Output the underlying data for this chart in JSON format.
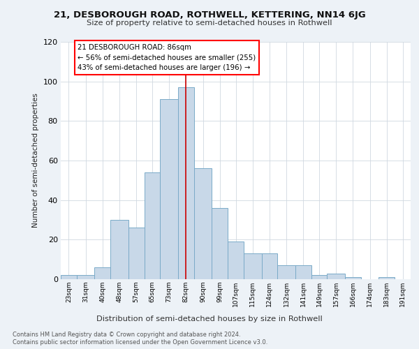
{
  "title1": "21, DESBOROUGH ROAD, ROTHWELL, KETTERING, NN14 6JG",
  "title2": "Size of property relative to semi-detached houses in Rothwell",
  "xlabel": "Distribution of semi-detached houses by size in Rothwell",
  "ylabel": "Number of semi-detached properties",
  "bins": [
    23,
    31,
    40,
    48,
    57,
    65,
    73,
    82,
    90,
    99,
    107,
    115,
    124,
    132,
    141,
    149,
    157,
    166,
    174,
    183,
    191
  ],
  "heights": [
    2,
    2,
    6,
    30,
    26,
    54,
    91,
    97,
    56,
    36,
    19,
    13,
    13,
    7,
    7,
    2,
    3,
    1,
    0,
    1,
    0
  ],
  "bar_color": "#c8d8e8",
  "bar_edge_color": "#7aaac8",
  "property_size": 86,
  "annotation_title": "21 DESBOROUGH ROAD: 86sqm",
  "annotation_line1": "← 56% of semi-detached houses are smaller (255)",
  "annotation_line2": "43% of semi-detached houses are larger (196) →",
  "vline_color": "#cc0000",
  "ylim": [
    0,
    120
  ],
  "yticks": [
    0,
    20,
    40,
    60,
    80,
    100,
    120
  ],
  "footnote1": "Contains HM Land Registry data © Crown copyright and database right 2024.",
  "footnote2": "Contains public sector information licensed under the Open Government Licence v3.0.",
  "bg_color": "#edf2f7",
  "plot_bg_color": "#ffffff",
  "grid_color": "#d0d8e0"
}
